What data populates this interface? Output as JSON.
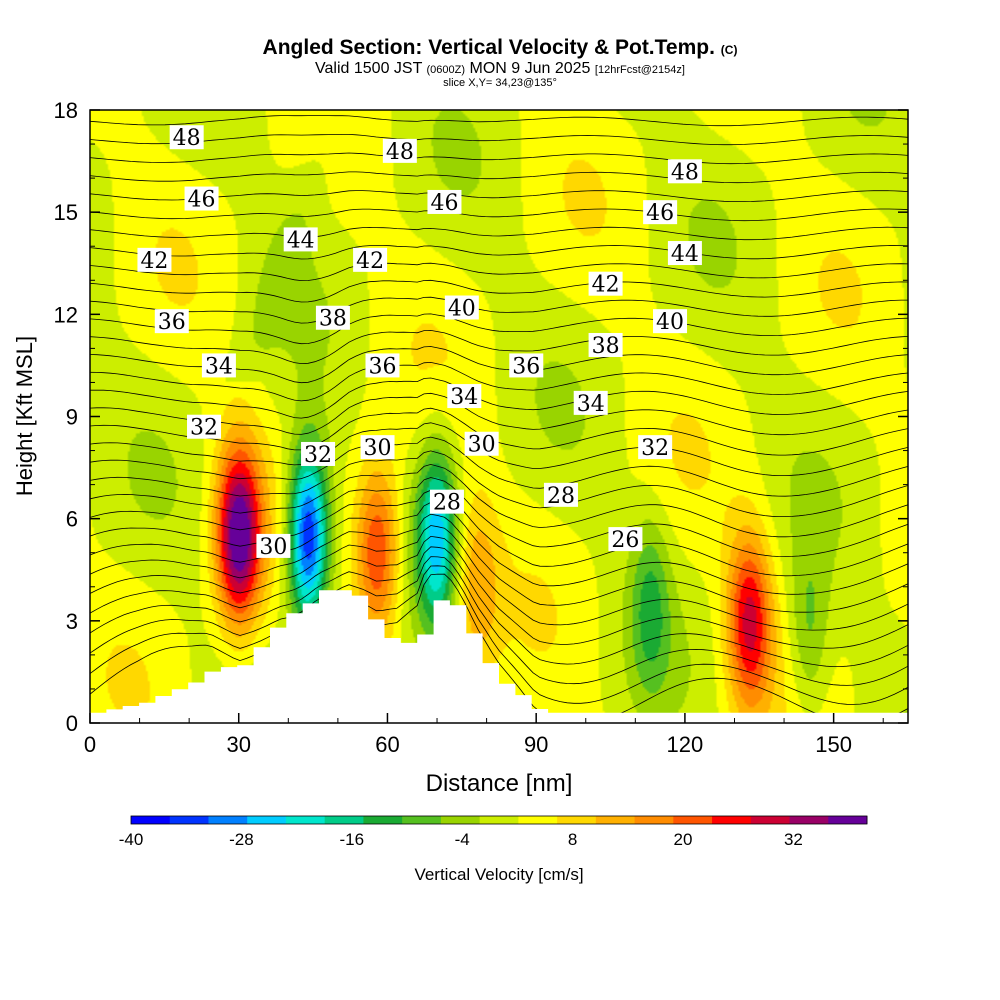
{
  "header": {
    "title": "Angled Section: Vertical Velocity & Pot.Temp.",
    "title_suffix": "(C)",
    "subtitle_valid": "Valid 1500 JST",
    "subtitle_z": "(0600Z)",
    "subtitle_date": "MON 9 Jun 2025",
    "subtitle_fcst": "[12hrFcst@2154z]",
    "slice": "slice X,Y= 34,23@135°"
  },
  "chart_data": {
    "type": "heatmap",
    "xlabel": "Distance [nm]",
    "ylabel": "Height [Kft MSL]",
    "xlim": [
      0,
      165
    ],
    "ylim": [
      0,
      18
    ],
    "x_ticks": [
      0,
      30,
      60,
      90,
      120,
      150
    ],
    "y_ticks": [
      0,
      3,
      6,
      9,
      12,
      15,
      18
    ],
    "colorbar": {
      "label": "Vertical Velocity [cm/s]",
      "ticks": [
        -40,
        -28,
        -16,
        -4,
        8,
        20,
        32
      ],
      "range": [
        -40,
        40
      ],
      "colors": [
        "#0000ff",
        "#0033ff",
        "#0080ff",
        "#00ccff",
        "#00e6cc",
        "#00cc88",
        "#1aaa33",
        "#55c020",
        "#99d400",
        "#ccee00",
        "#ffff00",
        "#ffd800",
        "#ffb000",
        "#ff8c00",
        "#ff5500",
        "#ff0000",
        "#cc0033",
        "#990066",
        "#660099"
      ]
    },
    "theta_contour_labels": [
      {
        "label": "48",
        "x": 19.5,
        "y": 17.2
      },
      {
        "label": "48",
        "x": 62.5,
        "y": 16.8
      },
      {
        "label": "48",
        "x": 120,
        "y": 16.2
      },
      {
        "label": "46",
        "x": 22.5,
        "y": 15.4
      },
      {
        "label": "46",
        "x": 71.5,
        "y": 15.3
      },
      {
        "label": "46",
        "x": 115,
        "y": 15.0
      },
      {
        "label": "44",
        "x": 42.5,
        "y": 14.2
      },
      {
        "label": "44",
        "x": 120,
        "y": 13.8
      },
      {
        "label": "42",
        "x": 13,
        "y": 13.6
      },
      {
        "label": "42",
        "x": 56.5,
        "y": 13.6
      },
      {
        "label": "42",
        "x": 104,
        "y": 12.9
      },
      {
        "label": "40",
        "x": 75,
        "y": 12.2
      },
      {
        "label": "40",
        "x": 117,
        "y": 11.8
      },
      {
        "label": "38",
        "x": 49,
        "y": 11.9
      },
      {
        "label": "38",
        "x": 104,
        "y": 11.1
      },
      {
        "label": "36",
        "x": 16.5,
        "y": 11.8
      },
      {
        "label": "36",
        "x": 59,
        "y": 10.5
      },
      {
        "label": "36",
        "x": 88,
        "y": 10.5
      },
      {
        "label": "34",
        "x": 26,
        "y": 10.5
      },
      {
        "label": "34",
        "x": 75.5,
        "y": 9.6
      },
      {
        "label": "34",
        "x": 101,
        "y": 9.4
      },
      {
        "label": "32",
        "x": 23,
        "y": 8.7
      },
      {
        "label": "32",
        "x": 46,
        "y": 7.9
      },
      {
        "label": "32",
        "x": 114,
        "y": 8.1
      },
      {
        "label": "30",
        "x": 58,
        "y": 8.1
      },
      {
        "label": "30",
        "x": 79,
        "y": 8.2
      },
      {
        "label": "30",
        "x": 37,
        "y": 5.2
      },
      {
        "label": "28",
        "x": 72,
        "y": 6.5
      },
      {
        "label": "28",
        "x": 95,
        "y": 6.7
      },
      {
        "label": "26",
        "x": 108,
        "y": 5.4
      }
    ],
    "vertical_velocity_features": [
      {
        "kind": "updraft",
        "x": 30,
        "y": 5.5,
        "peak": 38
      },
      {
        "kind": "downdraft",
        "x": 44,
        "y": 5.5,
        "peak": -40
      },
      {
        "kind": "updraft",
        "x": 58,
        "y": 5.0,
        "peak": 24
      },
      {
        "kind": "downdraft",
        "x": 70,
        "y": 5.5,
        "peak": -26
      },
      {
        "kind": "updraft",
        "x": 78,
        "y": 4.0,
        "peak": 12
      },
      {
        "kind": "downdraft",
        "x": 113,
        "y": 3.5,
        "peak": -12
      },
      {
        "kind": "updraft",
        "x": 133,
        "y": 3.0,
        "peak": 26
      },
      {
        "kind": "downdraft",
        "x": 145,
        "y": 2.5,
        "peak": -10
      }
    ],
    "terrain_top_kft": [
      [
        0,
        0.3
      ],
      [
        10,
        0.6
      ],
      [
        20,
        1.2
      ],
      [
        24,
        1.6
      ],
      [
        30,
        1.7
      ],
      [
        34,
        2.4
      ],
      [
        38,
        3.1
      ],
      [
        42,
        3.4
      ],
      [
        46,
        3.9
      ],
      [
        52,
        3.9
      ],
      [
        55,
        3.3
      ],
      [
        58,
        2.6
      ],
      [
        62,
        2.3
      ],
      [
        66,
        2.6
      ],
      [
        68,
        3.6
      ],
      [
        72,
        3.6
      ],
      [
        75,
        2.9
      ],
      [
        78,
        2.0
      ],
      [
        82,
        1.2
      ],
      [
        86,
        0.8
      ],
      [
        90,
        0.3
      ],
      [
        165,
        0.3
      ]
    ]
  }
}
